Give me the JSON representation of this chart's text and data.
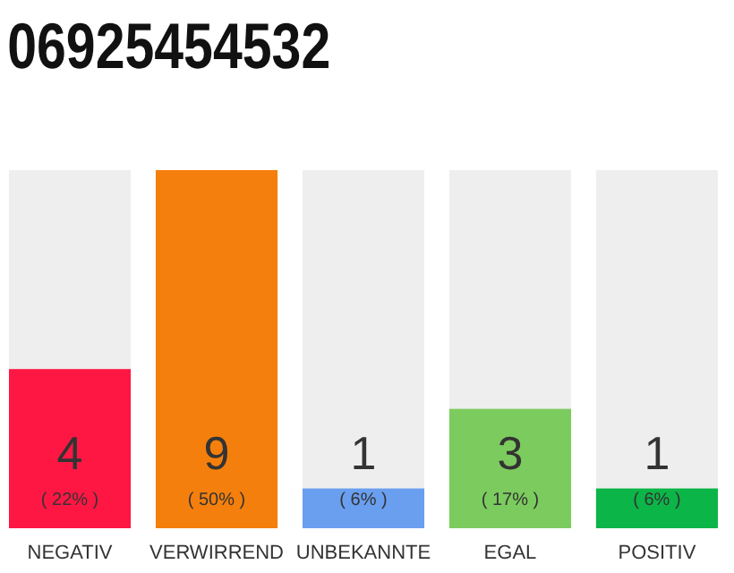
{
  "chart_data": {
    "type": "bar",
    "title": "06925454532",
    "categories": [
      "NEGATIV",
      "VERWIRREND",
      "UNBEKANNTE",
      "EGAL",
      "POSITIV"
    ],
    "values": [
      4,
      9,
      1,
      3,
      1
    ],
    "colors": [
      "#ff1744",
      "#f57f0c",
      "#6a9ff0",
      "#7ccb5e",
      "#0cb547"
    ],
    "data_labels": true,
    "annotations": [
      "( 22% )",
      "( 50% )",
      "( 6% )",
      "( 17% )",
      "( 6% )"
    ]
  }
}
